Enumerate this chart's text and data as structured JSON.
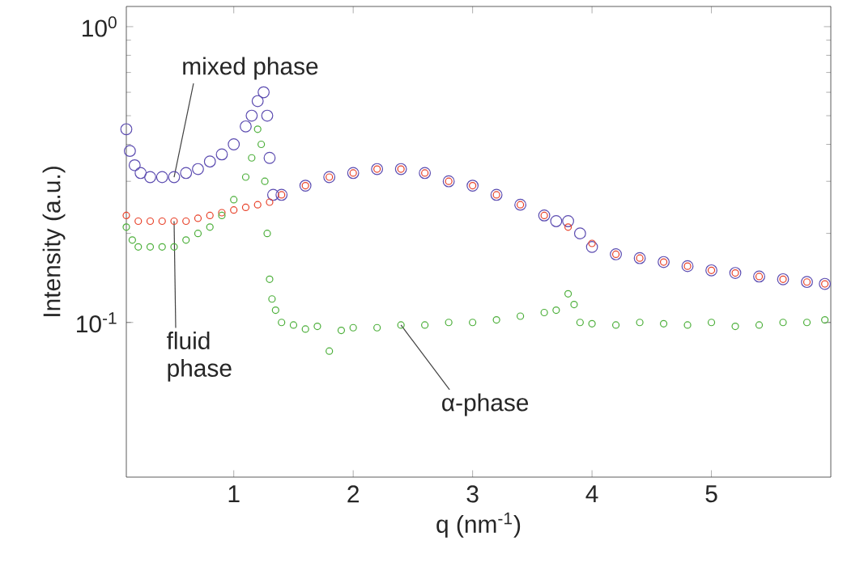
{
  "chart_data": {
    "type": "scatter",
    "xlabel": "q (nm$^{-1}$)",
    "ylabel": "Intensity (a.u.)",
    "log": "y",
    "marker": "circle",
    "xlim": [
      0.1,
      6
    ],
    "ylim": [
      0.03,
      1.17
    ],
    "xticks": [
      1,
      2,
      3,
      4,
      5
    ],
    "yticks": [
      {
        "value": 0.1,
        "label": "10$^{-1}$"
      },
      {
        "value": 1,
        "label": "10$^{0}$"
      }
    ],
    "series": [
      {
        "name": "mixed phase",
        "color": "#5b4bb0",
        "x": [
          0.1,
          0.13,
          0.17,
          0.22,
          0.3,
          0.4,
          0.5,
          0.6,
          0.7,
          0.8,
          0.9,
          1.0,
          1.1,
          1.15,
          1.2,
          1.25,
          1.28,
          1.3,
          1.33,
          1.4,
          1.6,
          1.8,
          2.0,
          2.2,
          2.4,
          2.6,
          2.8,
          3.0,
          3.2,
          3.4,
          3.6,
          3.7,
          3.8,
          3.9,
          4.0,
          4.2,
          4.4,
          4.6,
          4.8,
          5.0,
          5.2,
          5.4,
          5.6,
          5.8,
          5.95
        ],
        "values": [
          0.45,
          0.38,
          0.34,
          0.32,
          0.31,
          0.31,
          0.31,
          0.32,
          0.33,
          0.35,
          0.37,
          0.4,
          0.46,
          0.5,
          0.56,
          0.6,
          0.5,
          0.36,
          0.27,
          0.27,
          0.29,
          0.31,
          0.32,
          0.33,
          0.33,
          0.32,
          0.3,
          0.29,
          0.27,
          0.25,
          0.23,
          0.22,
          0.22,
          0.2,
          0.18,
          0.17,
          0.165,
          0.16,
          0.155,
          0.15,
          0.147,
          0.143,
          0.14,
          0.137,
          0.135
        ]
      },
      {
        "name": "fluid phase",
        "color": "#e8422a",
        "x": [
          0.1,
          0.2,
          0.3,
          0.4,
          0.5,
          0.6,
          0.7,
          0.8,
          0.9,
          1.0,
          1.1,
          1.2,
          1.3,
          1.4,
          1.6,
          1.8,
          2.0,
          2.2,
          2.4,
          2.6,
          2.8,
          3.0,
          3.2,
          3.4,
          3.6,
          3.8,
          4.0,
          4.2,
          4.4,
          4.6,
          4.8,
          5.0,
          5.2,
          5.4,
          5.6,
          5.8,
          5.95
        ],
        "values": [
          0.23,
          0.22,
          0.22,
          0.22,
          0.22,
          0.22,
          0.225,
          0.23,
          0.235,
          0.24,
          0.245,
          0.25,
          0.255,
          0.27,
          0.29,
          0.31,
          0.32,
          0.33,
          0.33,
          0.32,
          0.3,
          0.29,
          0.27,
          0.25,
          0.23,
          0.21,
          0.185,
          0.17,
          0.165,
          0.16,
          0.155,
          0.15,
          0.147,
          0.143,
          0.14,
          0.137,
          0.135
        ]
      },
      {
        "name": "α-phase",
        "color": "#4caf3a",
        "x": [
          0.1,
          0.15,
          0.2,
          0.3,
          0.4,
          0.5,
          0.6,
          0.7,
          0.8,
          0.9,
          1.0,
          1.1,
          1.15,
          1.2,
          1.23,
          1.26,
          1.28,
          1.3,
          1.32,
          1.35,
          1.4,
          1.5,
          1.6,
          1.7,
          1.8,
          1.9,
          2.0,
          2.2,
          2.4,
          2.6,
          2.8,
          3.0,
          3.2,
          3.4,
          3.6,
          3.7,
          3.8,
          3.85,
          3.9,
          4.0,
          4.2,
          4.4,
          4.6,
          4.8,
          5.0,
          5.2,
          5.4,
          5.6,
          5.8,
          5.95
        ],
        "values": [
          0.21,
          0.19,
          0.18,
          0.18,
          0.18,
          0.18,
          0.19,
          0.2,
          0.21,
          0.23,
          0.26,
          0.31,
          0.36,
          0.45,
          0.4,
          0.3,
          0.2,
          0.14,
          0.12,
          0.11,
          0.1,
          0.098,
          0.095,
          0.097,
          0.08,
          0.094,
          0.096,
          0.096,
          0.098,
          0.098,
          0.1,
          0.1,
          0.102,
          0.105,
          0.108,
          0.11,
          0.125,
          0.115,
          0.1,
          0.099,
          0.098,
          0.1,
          0.099,
          0.098,
          0.1,
          0.097,
          0.098,
          0.1,
          0.1,
          0.102
        ]
      }
    ]
  }
}
